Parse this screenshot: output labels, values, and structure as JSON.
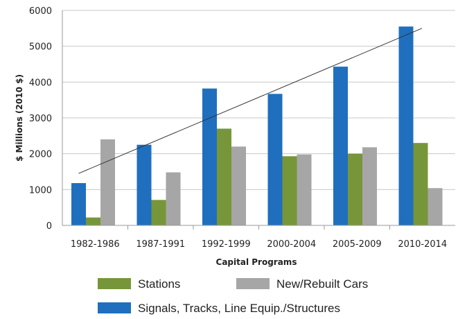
{
  "chart_data": {
    "type": "bar",
    "title": "",
    "xlabel": "Capital Programs",
    "ylabel": "$ Millions (2010 $)",
    "ylim": [
      0,
      6000
    ],
    "yticks": [
      0,
      1000,
      2000,
      3000,
      4000,
      5000,
      6000
    ],
    "grid": true,
    "categories": [
      "1982-1986",
      "1987-1991",
      "1992-1999",
      "2000-2004",
      "2005-2009",
      "2010-2014"
    ],
    "series": [
      {
        "name": "Signals, Tracks, Line Equip./Structures",
        "color": "#1f6fbe",
        "values": [
          1180,
          2250,
          3820,
          3670,
          4430,
          5550
        ]
      },
      {
        "name": "Stations",
        "color": "#77963a",
        "values": [
          220,
          710,
          2700,
          1930,
          2000,
          2300
        ]
      },
      {
        "name": "New/Rebuilt Cars",
        "color": "#a6a6a6",
        "values": [
          2400,
          1480,
          2200,
          1980,
          2180,
          1040
        ]
      }
    ],
    "trendline": {
      "series": "Signals, Tracks, Line Equip./Structures",
      "start_value": 1450,
      "end_value": 5500,
      "color": "#333333"
    },
    "legend_placement": "bottom"
  }
}
